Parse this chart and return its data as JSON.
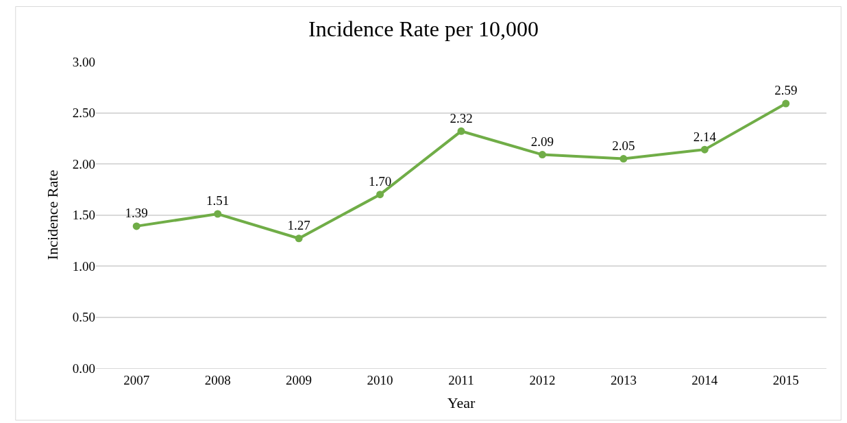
{
  "chart_data": {
    "type": "line",
    "title": "Incidence Rate per 10,000",
    "xlabel": "Year",
    "ylabel": "Incidence Rate",
    "categories": [
      "2007",
      "2008",
      "2009",
      "2010",
      "2011",
      "2012",
      "2013",
      "2014",
      "2015"
    ],
    "series": [
      {
        "color": "#70ad47",
        "values": [
          1.39,
          1.51,
          1.27,
          1.7,
          2.32,
          2.09,
          2.05,
          2.14,
          2.59
        ],
        "value_labels": [
          "1.39",
          "1.51",
          "1.27",
          "1.70",
          "2.32",
          "2.09",
          "2.05",
          "2.14",
          "2.59"
        ]
      }
    ],
    "ylim": [
      0,
      3
    ],
    "yticks": [
      {
        "value": 0,
        "label": "0.00"
      },
      {
        "value": 0.5,
        "label": "0.50"
      },
      {
        "value": 1,
        "label": "1.00"
      },
      {
        "value": 1.5,
        "label": "1.50"
      },
      {
        "value": 2,
        "label": "2.00"
      },
      {
        "value": 2.5,
        "label": "2.50"
      },
      {
        "value": 3,
        "label": "3.00"
      }
    ],
    "grid": "y",
    "legend": false,
    "marker": "circle",
    "line_style": "solid"
  }
}
